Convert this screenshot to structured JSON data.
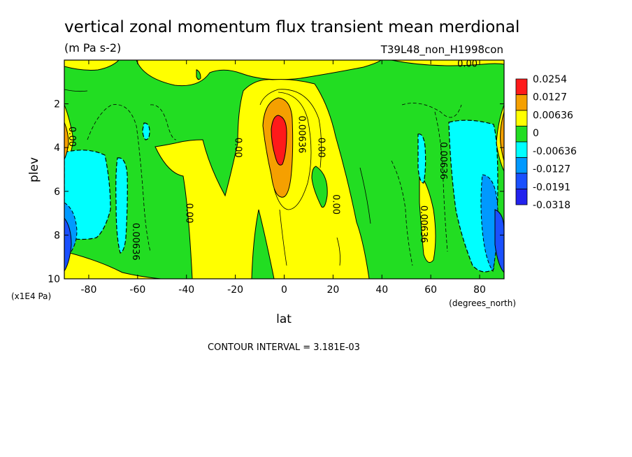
{
  "chart_data": {
    "type": "heatmap",
    "title": "vertical zonal momentum flux transient mean merdional",
    "units": "(m Pa s-2)",
    "run_label": "T39L48_non_H1998con",
    "xlabel": "lat",
    "xunits": "(degrees_north)",
    "ylabel": "plev",
    "yunits": "(x1E4 Pa)",
    "xlim": [
      -90,
      90
    ],
    "ylim": [
      0,
      10
    ],
    "y_inverted": true,
    "x_ticks": [
      "-80",
      "-60",
      "-40",
      "-20",
      "0",
      "20",
      "40",
      "60",
      "80"
    ],
    "x_tick_values": [
      -80,
      -60,
      -40,
      -20,
      0,
      20,
      40,
      60,
      80
    ],
    "y_ticks": [
      "2",
      "4",
      "6",
      "8",
      "10"
    ],
    "y_tick_values": [
      2,
      4,
      6,
      8,
      10
    ],
    "contour_interval": "CONTOUR INTERVAL = 3.181E-03",
    "colorbar": {
      "labels": [
        "0.0254",
        "0.0127",
        "0.00636",
        "0",
        "-0.00636",
        "-0.0127",
        "-0.0191",
        "-0.0318"
      ],
      "colors": [
        "#ff1a1a",
        "#f5a000",
        "#ffff00",
        "#22dd22",
        "#00ffff",
        "#0099ff",
        "#1a50ff",
        "#2222ee"
      ]
    },
    "contour_labels": [
      {
        "text": "0.00",
        "lat": 75,
        "p": 0.3
      },
      {
        "text": "0.00",
        "lat": -88,
        "p": 3.5
      },
      {
        "text": "0.00636",
        "lat": 6,
        "p": 3.4
      },
      {
        "text": "0.00",
        "lat": -20,
        "p": 4.0
      },
      {
        "text": "0.00",
        "lat": 14,
        "p": 4.0
      },
      {
        "text": "0.00636",
        "lat": 64,
        "p": 4.6
      },
      {
        "text": "0.00",
        "lat": 20,
        "p": 6.6
      },
      {
        "text": "0.00",
        "lat": -40,
        "p": 7.0
      },
      {
        "text": "0.00636",
        "lat": 56,
        "p": 7.5
      },
      {
        "text": "0.00636",
        "lat": -62,
        "p": 8.3
      }
    ]
  }
}
